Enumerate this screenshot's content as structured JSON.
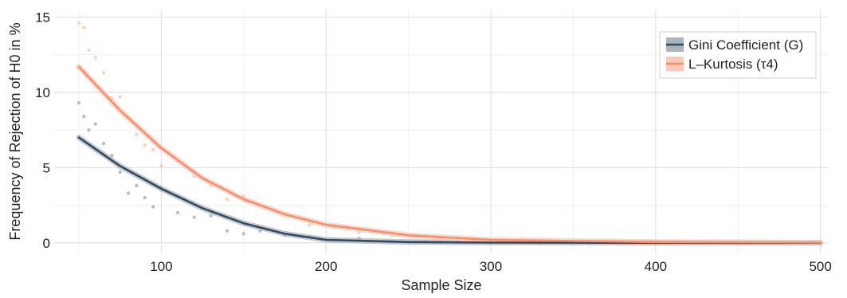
{
  "chart_data": {
    "type": "scatter",
    "title": "",
    "xlabel": "Sample Size",
    "ylabel": "Frequency of Rejection of H0 in %",
    "xlim": [
      35,
      505
    ],
    "ylim": [
      -0.7,
      15.5
    ],
    "xticks": [
      100,
      200,
      300,
      400,
      500
    ],
    "yticks": [
      0,
      5,
      10,
      15
    ],
    "grid": true,
    "legend_position": "top-right",
    "series": [
      {
        "name": "Gini Coefficient (G)",
        "color": "#34495e",
        "band_color": "#aab4bf",
        "fit": {
          "x": [
            50,
            75,
            100,
            125,
            150,
            175,
            200,
            250,
            300,
            400,
            500
          ],
          "y": [
            7.0,
            5.1,
            3.6,
            2.3,
            1.3,
            0.6,
            0.2,
            0.05,
            0.02,
            0.0,
            0.0
          ]
        },
        "points": {
          "x": [
            50,
            53,
            56,
            60,
            65,
            70,
            75,
            80,
            85,
            90,
            95,
            100,
            110,
            120,
            130,
            140,
            150,
            160,
            175,
            190,
            205,
            220,
            240,
            260,
            280,
            300,
            330,
            360,
            400,
            450,
            500
          ],
          "y": [
            9.3,
            8.4,
            7.5,
            7.9,
            6.6,
            5.8,
            4.7,
            3.3,
            3.8,
            3.0,
            2.4,
            3.6,
            2.0,
            1.7,
            1.8,
            0.8,
            0.6,
            0.8,
            0.5,
            0.4,
            0.2,
            0.3,
            0.1,
            0.1,
            0.05,
            0.05,
            0.0,
            0.0,
            0.0,
            0.0,
            0.0
          ]
        }
      },
      {
        "name": "L–Kurtosis (τ4)",
        "color": "#f4906f",
        "band_color": "#fbc9b6",
        "fit": {
          "x": [
            50,
            75,
            100,
            125,
            150,
            175,
            200,
            250,
            300,
            400,
            500
          ],
          "y": [
            11.7,
            8.8,
            6.3,
            4.3,
            2.9,
            1.9,
            1.2,
            0.5,
            0.2,
            0.05,
            0.02
          ]
        },
        "points": {
          "x": [
            50,
            53,
            56,
            60,
            65,
            70,
            75,
            80,
            85,
            90,
            95,
            100,
            110,
            120,
            130,
            140,
            150,
            160,
            175,
            190,
            205,
            220,
            240,
            260,
            280,
            300,
            330,
            360,
            400,
            450,
            500
          ],
          "y": [
            14.6,
            14.3,
            12.8,
            12.3,
            11.3,
            9.6,
            9.7,
            8.3,
            7.2,
            6.5,
            6.2,
            5.1,
            5.4,
            4.4,
            3.8,
            2.9,
            3.1,
            2.5,
            1.8,
            1.2,
            1.0,
            0.7,
            0.5,
            0.4,
            0.3,
            0.2,
            0.1,
            0.1,
            0.05,
            0.05,
            0.05
          ]
        }
      }
    ]
  }
}
